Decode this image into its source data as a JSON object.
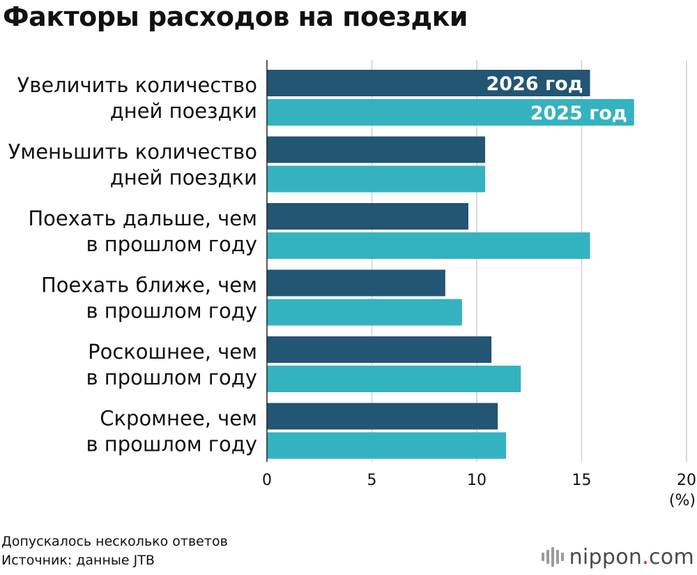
{
  "title": "Факторы расходов на поездки",
  "chart_data": {
    "type": "bar",
    "orientation": "horizontal",
    "title": "Факторы расходов на поездки",
    "categories": [
      [
        "Увеличить количество",
        "дней поездки"
      ],
      [
        "Уменьшить количество",
        "дней поездки"
      ],
      [
        "Поехать дальше, чем",
        "в прошлом году"
      ],
      [
        "Поехать ближе, чем",
        "в прошлом году"
      ],
      [
        "Роскошнее, чем",
        "в прошлом году"
      ],
      [
        "Скромнее, чем",
        "в прошлом году"
      ]
    ],
    "series": [
      {
        "name": "2026 год",
        "color": "#235574",
        "values": [
          15.4,
          10.4,
          9.6,
          8.5,
          10.7,
          11.0
        ]
      },
      {
        "name": "2025 год",
        "color": "#35b2c0",
        "values": [
          17.5,
          10.4,
          15.4,
          9.3,
          12.1,
          11.4
        ]
      }
    ],
    "xlim": [
      0,
      20
    ],
    "xticks": [
      0,
      5,
      10,
      15,
      20
    ],
    "xunit": "(%)",
    "grid": true,
    "legend": "inside-first-bars"
  },
  "notes": {
    "line1": "Допускалось несколько ответов",
    "line2": "Источник: данные JTB"
  },
  "logo": {
    "name": "nippon",
    "dot": ".",
    "suffix": "com"
  }
}
